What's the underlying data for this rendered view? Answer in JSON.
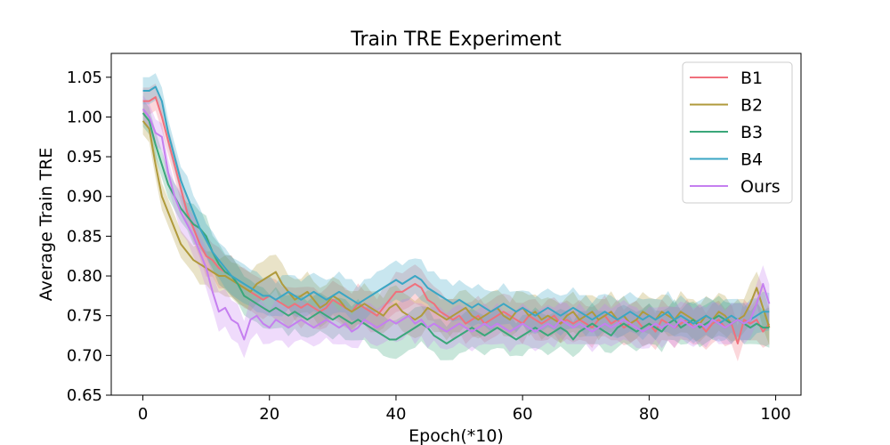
{
  "chart_data": {
    "type": "line",
    "title": "Train TRE Experiment",
    "xlabel": "Epoch(*10)",
    "ylabel": "Average Train TRE",
    "xlim": [
      -5,
      104
    ],
    "ylim": [
      0.65,
      1.08
    ],
    "xticks": [
      0,
      20,
      40,
      60,
      80,
      100
    ],
    "yticks": [
      0.65,
      0.7,
      0.75,
      0.8,
      0.85,
      0.9,
      0.95,
      1.0,
      1.05
    ],
    "xtick_labels": [
      "0",
      "20",
      "40",
      "60",
      "80",
      "100"
    ],
    "ytick_labels": [
      "0.65",
      "0.70",
      "0.75",
      "0.80",
      "0.85",
      "0.90",
      "0.95",
      "1.00",
      "1.05"
    ],
    "grid": false,
    "legend_position": "top-right",
    "band": "shaded confidence band around each line",
    "x": [
      0,
      1,
      2,
      3,
      4,
      5,
      6,
      7,
      8,
      9,
      10,
      11,
      12,
      13,
      14,
      15,
      16,
      17,
      18,
      19,
      20,
      21,
      22,
      23,
      24,
      25,
      26,
      27,
      28,
      29,
      30,
      31,
      32,
      33,
      34,
      35,
      36,
      37,
      38,
      39,
      40,
      41,
      42,
      43,
      44,
      45,
      46,
      47,
      48,
      49,
      50,
      51,
      52,
      53,
      54,
      55,
      56,
      57,
      58,
      59,
      60,
      61,
      62,
      63,
      64,
      65,
      66,
      67,
      68,
      69,
      70,
      71,
      72,
      73,
      74,
      75,
      76,
      77,
      78,
      79,
      80,
      81,
      82,
      83,
      84,
      85,
      86,
      87,
      88,
      89,
      90,
      91,
      92,
      93,
      94,
      95,
      96,
      97,
      98,
      99
    ],
    "series": [
      {
        "name": "B1",
        "color": "#f0707c",
        "values": [
          1.02,
          1.02,
          1.025,
          1.0,
          0.97,
          0.94,
          0.91,
          0.88,
          0.86,
          0.84,
          0.825,
          0.82,
          0.81,
          0.805,
          0.8,
          0.79,
          0.785,
          0.78,
          0.775,
          0.77,
          0.775,
          0.77,
          0.765,
          0.76,
          0.765,
          0.76,
          0.765,
          0.76,
          0.755,
          0.76,
          0.77,
          0.765,
          0.76,
          0.755,
          0.765,
          0.76,
          0.755,
          0.75,
          0.76,
          0.77,
          0.78,
          0.78,
          0.785,
          0.79,
          0.785,
          0.77,
          0.765,
          0.755,
          0.75,
          0.745,
          0.75,
          0.74,
          0.745,
          0.75,
          0.74,
          0.745,
          0.75,
          0.755,
          0.75,
          0.745,
          0.74,
          0.75,
          0.745,
          0.74,
          0.745,
          0.75,
          0.74,
          0.745,
          0.74,
          0.745,
          0.74,
          0.735,
          0.745,
          0.75,
          0.74,
          0.745,
          0.735,
          0.74,
          0.745,
          0.735,
          0.74,
          0.73,
          0.745,
          0.74,
          0.735,
          0.74,
          0.745,
          0.735,
          0.74,
          0.73,
          0.74,
          0.745,
          0.735,
          0.74,
          0.715,
          0.745,
          0.74,
          0.745,
          0.73,
          0.74
        ]
      },
      {
        "name": "B2",
        "color": "#b09a3b",
        "values": [
          0.995,
          0.985,
          0.94,
          0.9,
          0.88,
          0.86,
          0.84,
          0.83,
          0.82,
          0.815,
          0.81,
          0.805,
          0.8,
          0.8,
          0.795,
          0.79,
          0.785,
          0.78,
          0.79,
          0.795,
          0.8,
          0.805,
          0.79,
          0.78,
          0.77,
          0.775,
          0.78,
          0.77,
          0.76,
          0.765,
          0.775,
          0.77,
          0.76,
          0.755,
          0.76,
          0.765,
          0.76,
          0.755,
          0.75,
          0.76,
          0.765,
          0.755,
          0.75,
          0.745,
          0.75,
          0.76,
          0.755,
          0.75,
          0.745,
          0.75,
          0.755,
          0.76,
          0.75,
          0.745,
          0.75,
          0.755,
          0.76,
          0.75,
          0.745,
          0.755,
          0.76,
          0.75,
          0.755,
          0.745,
          0.75,
          0.745,
          0.74,
          0.75,
          0.755,
          0.745,
          0.75,
          0.755,
          0.745,
          0.75,
          0.755,
          0.745,
          0.75,
          0.74,
          0.745,
          0.755,
          0.75,
          0.745,
          0.755,
          0.75,
          0.745,
          0.755,
          0.75,
          0.745,
          0.74,
          0.75,
          0.745,
          0.755,
          0.75,
          0.74,
          0.745,
          0.75,
          0.765,
          0.785,
          0.76,
          0.735
        ]
      },
      {
        "name": "B3",
        "color": "#3aa77a",
        "values": [
          1.005,
          0.995,
          0.965,
          0.94,
          0.915,
          0.9,
          0.885,
          0.875,
          0.865,
          0.86,
          0.85,
          0.83,
          0.815,
          0.805,
          0.8,
          0.79,
          0.775,
          0.77,
          0.765,
          0.76,
          0.755,
          0.76,
          0.755,
          0.75,
          0.755,
          0.75,
          0.745,
          0.75,
          0.755,
          0.75,
          0.745,
          0.75,
          0.745,
          0.74,
          0.745,
          0.74,
          0.735,
          0.73,
          0.725,
          0.72,
          0.72,
          0.725,
          0.73,
          0.735,
          0.74,
          0.735,
          0.725,
          0.72,
          0.715,
          0.72,
          0.725,
          0.73,
          0.735,
          0.73,
          0.725,
          0.73,
          0.735,
          0.73,
          0.725,
          0.72,
          0.725,
          0.73,
          0.735,
          0.73,
          0.725,
          0.73,
          0.735,
          0.73,
          0.72,
          0.73,
          0.735,
          0.74,
          0.735,
          0.73,
          0.725,
          0.735,
          0.74,
          0.735,
          0.73,
          0.735,
          0.74,
          0.735,
          0.73,
          0.74,
          0.745,
          0.735,
          0.74,
          0.745,
          0.735,
          0.74,
          0.745,
          0.75,
          0.745,
          0.74,
          0.745,
          0.74,
          0.735,
          0.74,
          0.735,
          0.735
        ]
      },
      {
        "name": "B4",
        "color": "#3aa6c4",
        "values": [
          1.033,
          1.033,
          1.038,
          1.02,
          0.98,
          0.95,
          0.92,
          0.9,
          0.88,
          0.86,
          0.845,
          0.83,
          0.82,
          0.81,
          0.8,
          0.795,
          0.79,
          0.785,
          0.78,
          0.775,
          0.775,
          0.77,
          0.775,
          0.78,
          0.775,
          0.77,
          0.775,
          0.78,
          0.775,
          0.77,
          0.775,
          0.78,
          0.775,
          0.77,
          0.765,
          0.77,
          0.775,
          0.78,
          0.785,
          0.79,
          0.795,
          0.79,
          0.795,
          0.8,
          0.795,
          0.785,
          0.78,
          0.775,
          0.77,
          0.765,
          0.77,
          0.765,
          0.76,
          0.765,
          0.76,
          0.755,
          0.76,
          0.765,
          0.76,
          0.755,
          0.76,
          0.755,
          0.75,
          0.755,
          0.76,
          0.755,
          0.75,
          0.755,
          0.76,
          0.755,
          0.75,
          0.745,
          0.75,
          0.755,
          0.75,
          0.745,
          0.75,
          0.755,
          0.75,
          0.745,
          0.75,
          0.745,
          0.75,
          0.755,
          0.745,
          0.75,
          0.745,
          0.74,
          0.745,
          0.75,
          0.745,
          0.74,
          0.745,
          0.75,
          0.745,
          0.74,
          0.745,
          0.75,
          0.755,
          0.755
        ]
      },
      {
        "name": "Ours",
        "color": "#c57ff0",
        "values": [
          1.01,
          1.0,
          0.98,
          0.975,
          0.93,
          0.9,
          0.88,
          0.865,
          0.85,
          0.83,
          0.81,
          0.78,
          0.755,
          0.76,
          0.745,
          0.74,
          0.72,
          0.745,
          0.75,
          0.74,
          0.735,
          0.745,
          0.74,
          0.735,
          0.74,
          0.745,
          0.74,
          0.735,
          0.74,
          0.745,
          0.74,
          0.735,
          0.74,
          0.73,
          0.735,
          0.745,
          0.74,
          0.735,
          0.74,
          0.745,
          0.74,
          0.745,
          0.75,
          0.74,
          0.745,
          0.735,
          0.74,
          0.735,
          0.73,
          0.735,
          0.74,
          0.735,
          0.73,
          0.735,
          0.74,
          0.735,
          0.74,
          0.735,
          0.73,
          0.735,
          0.74,
          0.735,
          0.73,
          0.735,
          0.74,
          0.735,
          0.745,
          0.74,
          0.735,
          0.74,
          0.735,
          0.73,
          0.735,
          0.74,
          0.735,
          0.74,
          0.745,
          0.74,
          0.735,
          0.73,
          0.735,
          0.74,
          0.735,
          0.74,
          0.735,
          0.745,
          0.74,
          0.735,
          0.74,
          0.735,
          0.745,
          0.74,
          0.735,
          0.74,
          0.745,
          0.74,
          0.745,
          0.765,
          0.79,
          0.765
        ]
      }
    ]
  }
}
